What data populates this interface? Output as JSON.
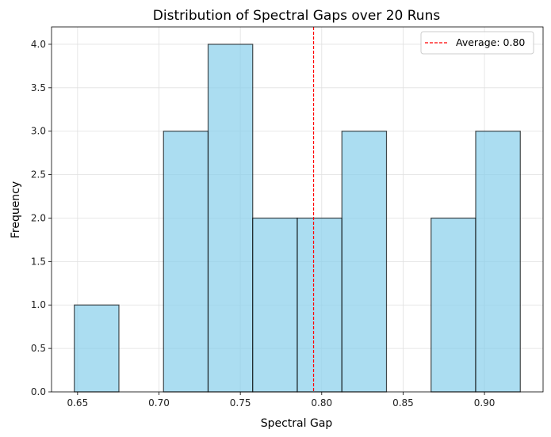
{
  "chart_data": {
    "type": "bar",
    "title": "Distribution of Spectral Gaps over 20 Runs",
    "xlabel": "Spectral Gap",
    "ylabel": "Frequency",
    "xlim": [
      0.634,
      0.936
    ],
    "ylim": [
      0,
      4.2
    ],
    "x_ticks": [
      "0.65",
      "0.70",
      "0.75",
      "0.80",
      "0.85",
      "0.90"
    ],
    "x_tick_values": [
      0.65,
      0.7,
      0.75,
      0.8,
      0.85,
      0.9
    ],
    "y_ticks": [
      "0.0",
      "0.5",
      "1.0",
      "1.5",
      "2.0",
      "2.5",
      "3.0",
      "3.5",
      "4.0"
    ],
    "y_tick_values": [
      0,
      0.5,
      1.0,
      1.5,
      2.0,
      2.5,
      3.0,
      3.5,
      4.0
    ],
    "bins": [
      {
        "start": 0.648,
        "end": 0.6754,
        "count": 1
      },
      {
        "start": 0.6754,
        "end": 0.7028,
        "count": 0
      },
      {
        "start": 0.7028,
        "end": 0.7302,
        "count": 3
      },
      {
        "start": 0.7302,
        "end": 0.7576,
        "count": 4
      },
      {
        "start": 0.7576,
        "end": 0.785,
        "count": 2
      },
      {
        "start": 0.785,
        "end": 0.8124,
        "count": 2
      },
      {
        "start": 0.8124,
        "end": 0.8398,
        "count": 3
      },
      {
        "start": 0.8398,
        "end": 0.8672,
        "count": 0
      },
      {
        "start": 0.8672,
        "end": 0.8946,
        "count": 2
      },
      {
        "start": 0.8946,
        "end": 0.922,
        "count": 3
      }
    ],
    "average": {
      "value": 0.795,
      "label": "Average: 0.80"
    },
    "grid": true,
    "legend_position": "top-right",
    "colors": {
      "bar_fill": "#87ceeb",
      "bar_edge": "#000000",
      "average_line": "#ff0000",
      "grid": "#e0e0e0"
    }
  }
}
